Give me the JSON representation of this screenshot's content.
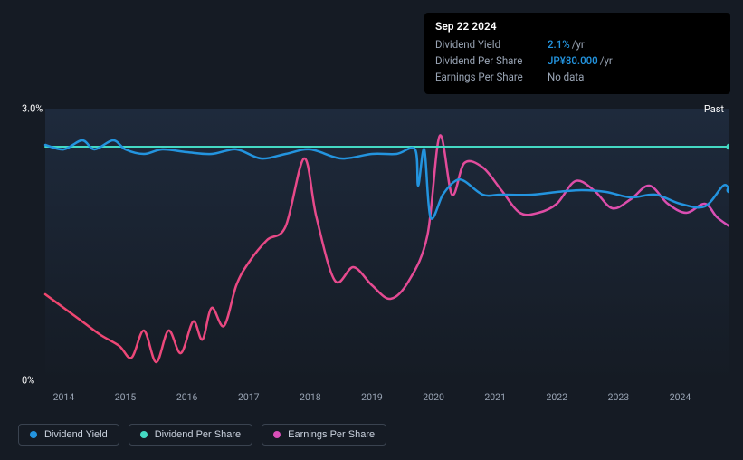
{
  "tooltip": {
    "date": "Sep 22 2024",
    "rows": [
      {
        "label": "Dividend Yield",
        "value": "2.1%",
        "unit": "/yr",
        "value_color": "#2394df"
      },
      {
        "label": "Dividend Per Share",
        "value": "JP¥80.000",
        "unit": "/yr",
        "value_color": "#2394df"
      },
      {
        "label": "Earnings Per Share",
        "nodata": "No data"
      }
    ]
  },
  "chart": {
    "type": "line",
    "background_color": "#151b24",
    "plot_gradient_top": "#1e2a3c",
    "plot_gradient_bottom": "#151b24",
    "grid_color": "#2b3442",
    "ylim": [
      0,
      3.0
    ],
    "yticks": [
      {
        "v": 3.0,
        "label": "3.0%"
      },
      {
        "v": 0,
        "label": "0%"
      }
    ],
    "xlim": [
      2013.7,
      2024.8
    ],
    "xticks": [
      2014,
      2015,
      2016,
      2017,
      2018,
      2019,
      2020,
      2021,
      2022,
      2023,
      2024
    ],
    "past_label": "Past",
    "series": {
      "dividend_per_share": {
        "label": "Dividend Per Share",
        "color": "#44d9c3",
        "line_width": 2,
        "end_dot": true,
        "data": [
          [
            2013.7,
            2.58
          ],
          [
            2024.8,
            2.58
          ]
        ]
      },
      "dividend_yield": {
        "label": "Dividend Yield",
        "color": "#2394df",
        "line_width": 2.5,
        "end_dot": true,
        "data": [
          [
            2013.7,
            2.6
          ],
          [
            2014.0,
            2.55
          ],
          [
            2014.3,
            2.65
          ],
          [
            2014.5,
            2.55
          ],
          [
            2014.8,
            2.65
          ],
          [
            2015.0,
            2.55
          ],
          [
            2015.3,
            2.5
          ],
          [
            2015.6,
            2.55
          ],
          [
            2016.0,
            2.52
          ],
          [
            2016.4,
            2.5
          ],
          [
            2016.8,
            2.55
          ],
          [
            2017.2,
            2.45
          ],
          [
            2017.6,
            2.5
          ],
          [
            2018.0,
            2.55
          ],
          [
            2018.5,
            2.45
          ],
          [
            2019.0,
            2.5
          ],
          [
            2019.4,
            2.5
          ],
          [
            2019.7,
            2.55
          ],
          [
            2019.75,
            2.15
          ],
          [
            2019.85,
            2.55
          ],
          [
            2019.95,
            1.8
          ],
          [
            2020.15,
            2.05
          ],
          [
            2020.35,
            2.2
          ],
          [
            2020.5,
            2.2
          ],
          [
            2020.8,
            2.05
          ],
          [
            2021.1,
            2.05
          ],
          [
            2021.6,
            2.05
          ],
          [
            2022.0,
            2.08
          ],
          [
            2022.4,
            2.1
          ],
          [
            2022.8,
            2.08
          ],
          [
            2023.2,
            2.02
          ],
          [
            2023.6,
            2.05
          ],
          [
            2024.0,
            1.95
          ],
          [
            2024.4,
            1.92
          ],
          [
            2024.7,
            2.15
          ],
          [
            2024.8,
            2.1
          ]
        ]
      },
      "earnings_per_share": {
        "label": "Earnings Per Share",
        "color_gradient_start": "#f0466e",
        "color_gradient_end": "#d94fb8",
        "line_width": 2.5,
        "data": [
          [
            2013.7,
            0.95
          ],
          [
            2014.0,
            0.8
          ],
          [
            2014.3,
            0.65
          ],
          [
            2014.6,
            0.5
          ],
          [
            2014.9,
            0.38
          ],
          [
            2015.1,
            0.25
          ],
          [
            2015.3,
            0.55
          ],
          [
            2015.5,
            0.2
          ],
          [
            2015.7,
            0.55
          ],
          [
            2015.9,
            0.3
          ],
          [
            2016.1,
            0.65
          ],
          [
            2016.25,
            0.45
          ],
          [
            2016.4,
            0.8
          ],
          [
            2016.6,
            0.6
          ],
          [
            2016.8,
            1.05
          ],
          [
            2017.0,
            1.3
          ],
          [
            2017.3,
            1.55
          ],
          [
            2017.6,
            1.7
          ],
          [
            2017.9,
            2.45
          ],
          [
            2018.1,
            1.8
          ],
          [
            2018.4,
            1.1
          ],
          [
            2018.7,
            1.25
          ],
          [
            2019.0,
            1.05
          ],
          [
            2019.3,
            0.9
          ],
          [
            2019.6,
            1.1
          ],
          [
            2019.9,
            1.6
          ],
          [
            2020.1,
            2.7
          ],
          [
            2020.3,
            2.05
          ],
          [
            2020.5,
            2.4
          ],
          [
            2020.8,
            2.35
          ],
          [
            2021.1,
            2.1
          ],
          [
            2021.4,
            1.85
          ],
          [
            2021.7,
            1.85
          ],
          [
            2022.0,
            1.95
          ],
          [
            2022.3,
            2.2
          ],
          [
            2022.6,
            2.1
          ],
          [
            2022.9,
            1.9
          ],
          [
            2023.2,
            2.0
          ],
          [
            2023.5,
            2.15
          ],
          [
            2023.8,
            1.95
          ],
          [
            2024.1,
            1.85
          ],
          [
            2024.4,
            1.95
          ],
          [
            2024.6,
            1.8
          ],
          [
            2024.8,
            1.7
          ]
        ]
      }
    },
    "legend_order": [
      "dividend_yield",
      "dividend_per_share",
      "earnings_per_share"
    ]
  }
}
